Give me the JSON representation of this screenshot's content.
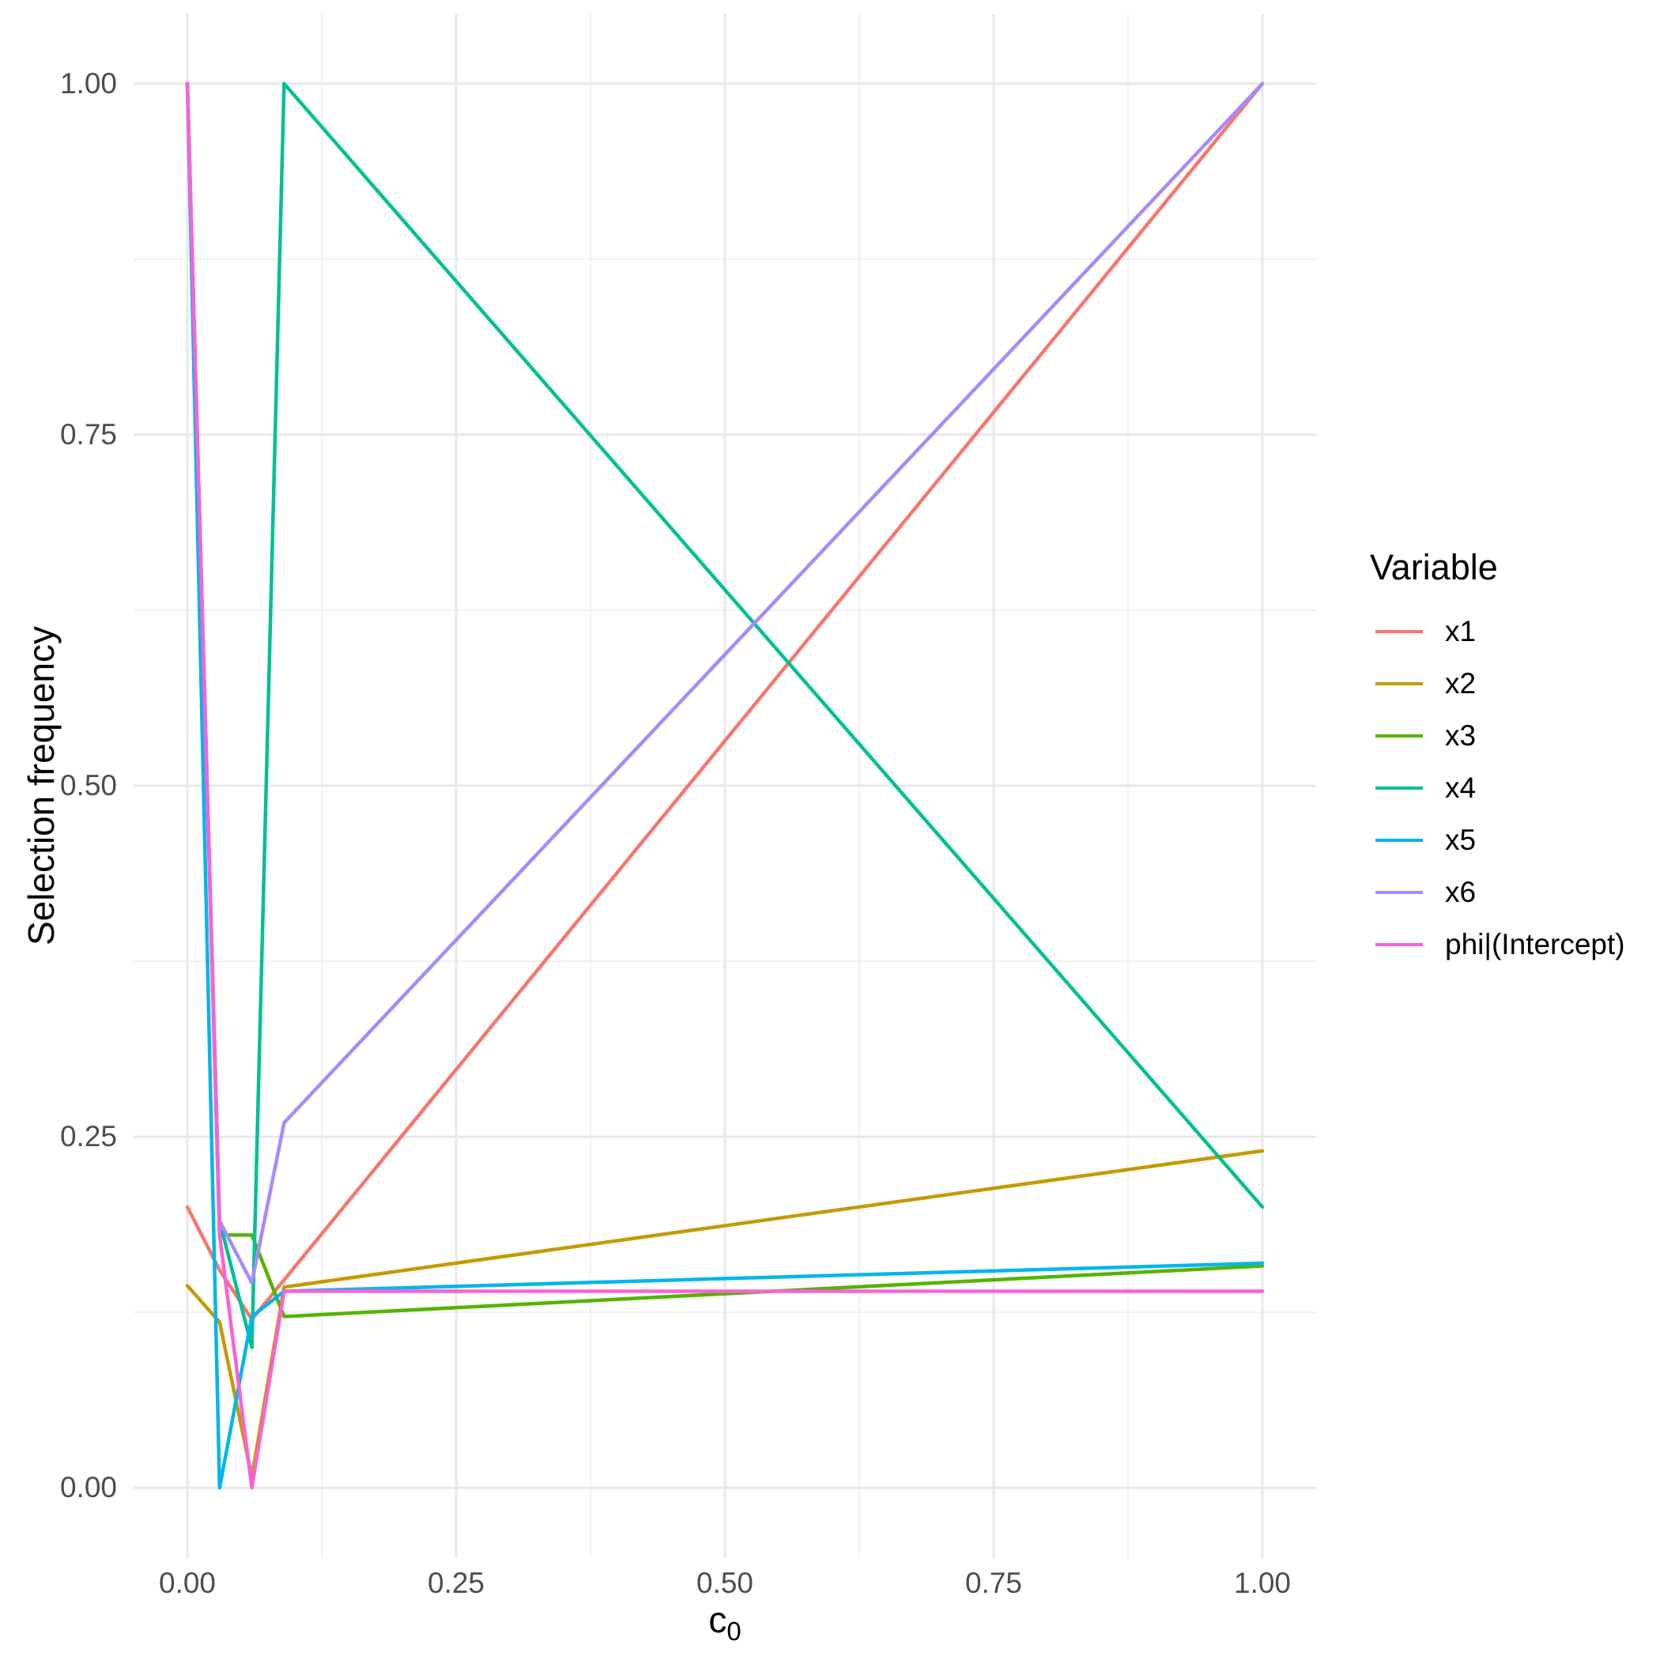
{
  "chart_data": {
    "type": "line",
    "title": "",
    "xlabel": {
      "base": "c",
      "sub": "0"
    },
    "ylabel": "Selection frequency",
    "xlim": [
      -0.05,
      1.05
    ],
    "ylim": [
      -0.05,
      1.05
    ],
    "grid": "major+minor",
    "x_major_ticks": {
      "values": [
        0,
        0.25,
        0.5,
        0.75,
        1
      ],
      "labels": [
        "0.00",
        "0.25",
        "0.50",
        "0.75",
        "1.00"
      ]
    },
    "y_major_ticks": {
      "values": [
        0,
        0.25,
        0.5,
        0.75,
        1
      ],
      "labels": [
        "0.00",
        "0.25",
        "0.50",
        "0.75",
        "1.00"
      ]
    },
    "x_minor_ticks": [
      0.125,
      0.375,
      0.625,
      0.875
    ],
    "y_minor_ticks": [
      0.125,
      0.375,
      0.625,
      0.875
    ],
    "legend": {
      "title": "Variable",
      "position": "right"
    },
    "series": [
      {
        "name": "x1",
        "color": "#F8766D",
        "points": [
          [
            0,
            0.2
          ],
          [
            0.03,
            0.155
          ],
          [
            0.06,
            0.12
          ],
          [
            1,
            1.0
          ]
        ]
      },
      {
        "name": "x2",
        "color": "#C49A00",
        "points": [
          [
            0,
            0.144
          ],
          [
            0.03,
            0.118
          ],
          [
            0.06,
            0.008
          ],
          [
            0.09,
            0.143
          ],
          [
            1,
            0.24
          ]
        ]
      },
      {
        "name": "x3",
        "color": "#53B400",
        "points": [
          [
            0,
            1.0
          ],
          [
            0.03,
            0.18
          ],
          [
            0.06,
            0.18
          ],
          [
            0.09,
            0.122
          ],
          [
            1,
            0.158
          ]
        ]
      },
      {
        "name": "x4",
        "color": "#00C094",
        "points": [
          [
            0,
            1.0
          ],
          [
            0.03,
            0.19
          ],
          [
            0.06,
            0.1
          ],
          [
            0.09,
            1.0
          ],
          [
            1,
            0.2
          ]
        ]
      },
      {
        "name": "x5",
        "color": "#00B6EB",
        "points": [
          [
            0,
            1.0
          ],
          [
            0.03,
            0.0
          ],
          [
            0.06,
            0.122
          ],
          [
            0.09,
            0.14
          ],
          [
            1,
            0.16
          ]
        ]
      },
      {
        "name": "x6",
        "color": "#A58AFF",
        "points": [
          [
            0,
            1.0
          ],
          [
            0.03,
            0.19
          ],
          [
            0.06,
            0.146
          ],
          [
            0.09,
            0.26
          ],
          [
            1,
            1.0
          ]
        ]
      },
      {
        "name": "phi|(Intercept)",
        "color": "#FB61D7",
        "points": [
          [
            0,
            1.0
          ],
          [
            0.03,
            0.18
          ],
          [
            0.06,
            0.0
          ],
          [
            0.09,
            0.14
          ],
          [
            1,
            0.14
          ]
        ]
      }
    ],
    "style": {
      "background": "#FFFFFF",
      "major_grid_color": "#E8E8E8",
      "minor_grid_color": "#F0F0F0",
      "tick_label_color": "#4d4d4d",
      "line_width": 4.5
    }
  }
}
